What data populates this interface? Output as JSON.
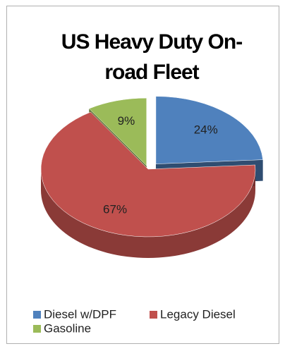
{
  "chart_data": {
    "type": "pie",
    "title": "US Heavy Duty On-road Fleet",
    "categories": [
      "Diesel w/DPF",
      "Legacy Diesel",
      "Gasoline"
    ],
    "values": [
      24,
      67,
      9
    ],
    "value_labels": [
      "24%",
      "67%",
      "9%"
    ],
    "colors": [
      "#4f81bd",
      "#c0504d",
      "#9bbb59"
    ],
    "legend": "bottom"
  }
}
